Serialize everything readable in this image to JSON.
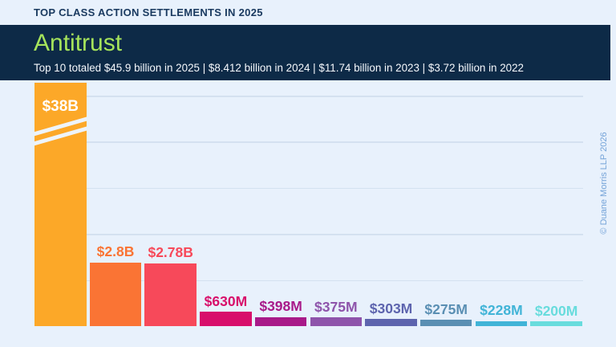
{
  "header": {
    "kicker": "TOP CLASS ACTION SETTLEMENTS IN 2025"
  },
  "banner": {
    "title": "Antitrust",
    "subtitle": "Top 10 totaled $45.9 billion in 2025 | $8.412 billion in 2024 | $11.74 billion in 2023 | $3.72 billion in 2022"
  },
  "copyright_vertical": "© Duane Morris LLP 2026",
  "colors": {
    "background": "#e8f1fc",
    "banner": "#0d2a47",
    "banner_title": "#a6e45b",
    "kicker_text": "#1a3a60",
    "subtitle_text": "#f5f8fc",
    "gridline": "#d4e1f0",
    "copyright_text": "#74a3d8"
  },
  "chart_data": {
    "type": "bar",
    "title": "Antitrust",
    "subtitle_totals": {
      "2025": "$45.9 billion",
      "2024": "$8.412 billion",
      "2023": "$11.74 billion",
      "2022": "$3.72 billion"
    },
    "unit": "USD millions",
    "grid": "horizontal",
    "legend": "none",
    "axis_break_on_first_bar": true,
    "bars": [
      {
        "label": "$38B",
        "value_musd": 38000,
        "color": "#fca828",
        "truncated": true,
        "label_inside": true
      },
      {
        "label": "$2.8B",
        "value_musd": 2800,
        "color": "#fa7434"
      },
      {
        "label": "$2.78B",
        "value_musd": 2780,
        "color": "#f7495a"
      },
      {
        "label": "$630M",
        "value_musd": 630,
        "color": "#d80f6b"
      },
      {
        "label": "$398M",
        "value_musd": 398,
        "color": "#a81a89"
      },
      {
        "label": "$375M",
        "value_musd": 375,
        "color": "#8e54ab"
      },
      {
        "label": "$303M",
        "value_musd": 303,
        "color": "#5d64ae"
      },
      {
        "label": "$275M",
        "value_musd": 275,
        "color": "#5a8fb3"
      },
      {
        "label": "$228M",
        "value_musd": 228,
        "color": "#41b4d7"
      },
      {
        "label": "$200M",
        "value_musd": 200,
        "color": "#68dcdd"
      }
    ]
  }
}
